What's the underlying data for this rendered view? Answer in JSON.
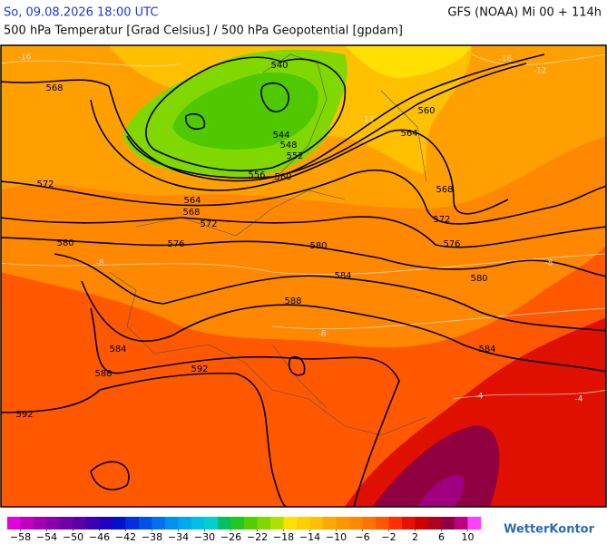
{
  "header": {
    "datetime": "So, 09.08.2026 18:00 UTC",
    "model": "GFS (NOAA) Mi 00 + 114h",
    "title": "500 hPa Temperatur [Grad Celsius] / 500 hPa Geopotential [gpdam]"
  },
  "map": {
    "geopotential_labels": [
      568,
      540,
      560,
      564,
      544,
      548,
      552,
      556,
      560,
      572,
      564,
      568,
      572,
      568,
      572,
      580,
      576,
      580,
      576,
      584,
      580,
      588,
      584,
      584,
      588,
      592,
      592
    ],
    "temperature_labels": [
      -16,
      -16,
      -12,
      -12,
      -8,
      -8,
      -8,
      -4,
      -4
    ]
  },
  "colorbar": {
    "range": [
      -60,
      12
    ],
    "colors": [
      "#e000e0",
      "#c000c0",
      "#a000b0",
      "#8a00a8",
      "#7000a8",
      "#5a00a8",
      "#3c00b4",
      "#2000c0",
      "#0010d0",
      "#0030e0",
      "#0050e8",
      "#0070f0",
      "#0090f0",
      "#00a8f0",
      "#00c0e8",
      "#00d0d0",
      "#00c060",
      "#20c820",
      "#50d000",
      "#80d800",
      "#b0e000",
      "#ffe000",
      "#ffd000",
      "#ffc000",
      "#ffa800",
      "#ff9800",
      "#ff8800",
      "#ff7400",
      "#ff5800",
      "#ff3000",
      "#e81000",
      "#d00000",
      "#b00020",
      "#900040",
      "#c00080",
      "#ff40ff"
    ],
    "ticks": [
      {
        "value": -58,
        "label": "−58"
      },
      {
        "value": -54,
        "label": "−54"
      },
      {
        "value": -50,
        "label": "−50"
      },
      {
        "value": -46,
        "label": "−46"
      },
      {
        "value": -42,
        "label": "−42"
      },
      {
        "value": -38,
        "label": "−38"
      },
      {
        "value": -34,
        "label": "−34"
      },
      {
        "value": -30,
        "label": "−30"
      },
      {
        "value": -26,
        "label": "−26"
      },
      {
        "value": -22,
        "label": "−22"
      },
      {
        "value": -18,
        "label": "−18"
      },
      {
        "value": -14,
        "label": "−14"
      },
      {
        "value": -10,
        "label": "−10"
      },
      {
        "value": -6,
        "label": "−6"
      },
      {
        "value": -2,
        "label": "−2"
      },
      2,
      6,
      10
    ]
  },
  "logo": "WetterKontor"
}
